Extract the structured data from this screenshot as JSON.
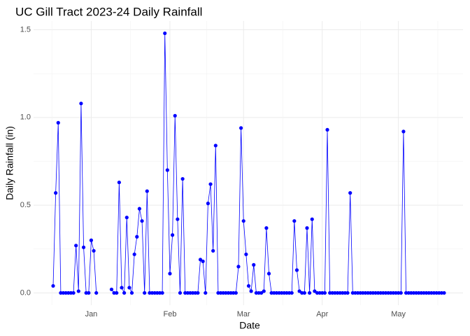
{
  "chart_data": {
    "type": "line",
    "title": "UC Gill Tract 2023-24 Daily Rainfall",
    "x_label": "Date",
    "y_label": "Daily Rainfall (in)",
    "categories": [
      null,
      null,
      null,
      null,
      null,
      null,
      null,
      null,
      null,
      null,
      null,
      null,
      null,
      null,
      null,
      "Jan",
      null,
      null,
      null,
      null,
      null,
      null,
      null,
      null,
      null,
      null,
      null,
      null,
      null,
      null,
      null,
      null,
      null,
      null,
      null,
      null,
      null,
      null,
      null,
      null,
      null,
      null,
      null,
      null,
      null,
      null,
      "Feb",
      null,
      null,
      null,
      null,
      null,
      null,
      null,
      null,
      null,
      null,
      null,
      null,
      null,
      null,
      null,
      null,
      null,
      null,
      null,
      null,
      null,
      null,
      null,
      null,
      null,
      null,
      null,
      null,
      "Mar",
      null,
      null,
      null,
      null,
      null,
      null,
      null,
      null,
      null,
      null,
      null,
      null,
      null,
      null,
      null,
      null,
      null,
      null,
      null,
      null,
      null,
      null,
      null,
      null,
      null,
      null,
      null,
      null,
      null,
      null,
      "Apr",
      null,
      null,
      null,
      null,
      null,
      null,
      null,
      null,
      null,
      null,
      null,
      null,
      null,
      null,
      null,
      null,
      null,
      null,
      null,
      null,
      null,
      null,
      null,
      null,
      null,
      null,
      null,
      null,
      null,
      "May",
      null,
      null,
      null,
      null,
      null,
      null,
      null,
      null,
      null,
      null,
      null,
      null,
      null,
      null,
      null,
      null,
      null,
      null
    ],
    "series": [
      {
        "name": "Daily Rainfall",
        "color": "#0000ff",
        "values": [
          0.04,
          0.57,
          0.97,
          0,
          0,
          0,
          0,
          0,
          0,
          0.27,
          0.01,
          1.08,
          0.26,
          0,
          0,
          0.3,
          0.24,
          0,
          null,
          null,
          null,
          null,
          null,
          0.02,
          0,
          0,
          0.63,
          0.03,
          0,
          0.43,
          0.03,
          0,
          0.22,
          0.32,
          0.48,
          0.41,
          0,
          0.58,
          0,
          0,
          0,
          0,
          0,
          0,
          1.48,
          0.7,
          0.11,
          0.33,
          1.01,
          0.42,
          0,
          0.65,
          0,
          0,
          0,
          0,
          0,
          0,
          0.19,
          0.18,
          0,
          0.51,
          0.62,
          0.24,
          0.84,
          0,
          0,
          0,
          0,
          0,
          0,
          0,
          0,
          0.15,
          0.94,
          0.41,
          0.22,
          0.04,
          0.01,
          0.16,
          0,
          0,
          0,
          0.01,
          0.37,
          0.11,
          0,
          0,
          0,
          0,
          0,
          0,
          0,
          0,
          0,
          0.41,
          0.13,
          0.01,
          0,
          0,
          0.37,
          0,
          0.42,
          0.01,
          0,
          0,
          0,
          0,
          0.93,
          0,
          0,
          0,
          0,
          0,
          0,
          0,
          0,
          0.57,
          0,
          0,
          0,
          0,
          0,
          0,
          0,
          0,
          0,
          0,
          0,
          0,
          0,
          0,
          0,
          0,
          0,
          0,
          0,
          0,
          0.92,
          0,
          0,
          0,
          0,
          0,
          0,
          0,
          0,
          0,
          0,
          0,
          0,
          0,
          0,
          0,
          0
        ]
      }
    ],
    "ylim": [
      -0.07,
      1.55
    ],
    "yticks": [
      {
        "value": 0,
        "label": "0.0"
      },
      0.5,
      {
        "value": 1,
        "label": "1.0"
      },
      1.5
    ],
    "grid": true
  }
}
